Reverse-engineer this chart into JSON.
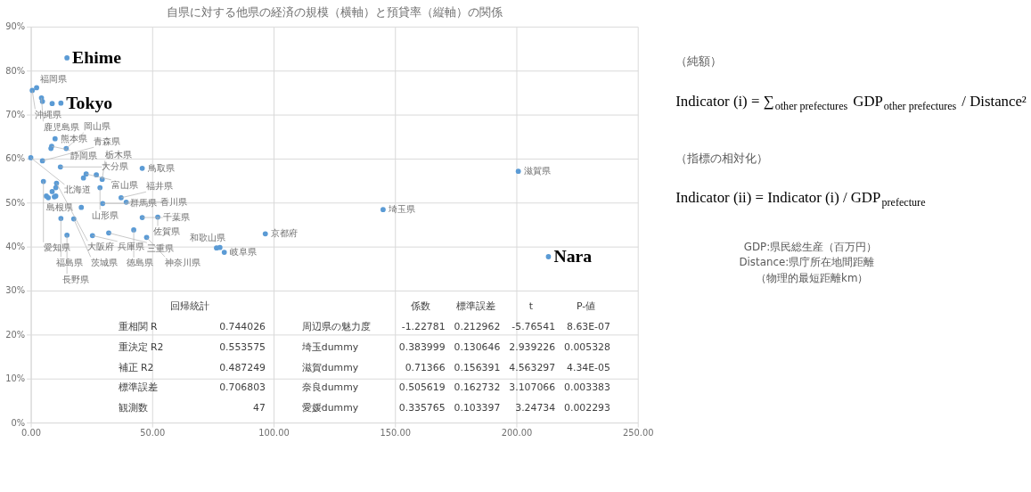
{
  "chart_data": [
    {
      "type": "scatter",
      "title": "自県に対する他県の経済の規模（横軸）と預貸率（縦軸）の関係",
      "x": [
        14.9,
        0.6,
        2.4,
        4.4,
        4.8,
        8.8,
        12.4,
        10.0,
        8.6,
        8.3,
        14.6,
        0,
        4.8,
        12.2,
        22.8,
        21.7,
        27.0,
        29.4,
        28.5,
        5.2,
        10.6,
        10.3,
        8.8,
        6.4,
        7.2,
        9.7,
        10.3,
        20.8,
        29.6,
        37.2,
        39.3,
        45.9,
        12.4,
        17.7,
        45.9,
        52.3,
        14.9,
        25.4,
        32.1,
        42.4,
        47.7,
        200.8,
        145.1,
        96.6,
        76.5,
        77.9,
        79.7,
        213.2
      ],
      "values": [
        82.9,
        75.5,
        76.1,
        73.8,
        73.0,
        72.5,
        72.6,
        64.5,
        62.8,
        62.3,
        62.3,
        60.2,
        59.5,
        58.1,
        56.5,
        55.6,
        56.3,
        55.3,
        53.4,
        54.8,
        54.4,
        53.4,
        52.5,
        51.5,
        51.1,
        51.3,
        51.5,
        48.9,
        49.8,
        51.1,
        50.1,
        57.8,
        46.4,
        46.3,
        46.6,
        46.7,
        42.6,
        42.5,
        43.1,
        43.8,
        42.1,
        57.1,
        48.4,
        42.9,
        39.7,
        39.8,
        38.7,
        37.7
      ],
      "color": "#5b9bd5",
      "marker": "circle",
      "grid": true,
      "xlim": [
        0,
        250
      ],
      "xticks": [
        {
          "value": 0,
          "label": "0.00"
        },
        {
          "value": 50,
          "label": "50.00"
        },
        {
          "value": 100,
          "label": "100.00"
        },
        {
          "value": 150,
          "label": "150.00"
        },
        {
          "value": 200,
          "label": "200.00"
        },
        {
          "value": 250,
          "label": "250.00"
        }
      ],
      "ylim": [
        0,
        90
      ],
      "yticks": [
        {
          "value": 0,
          "label": "0%"
        },
        {
          "value": 10,
          "label": "10%"
        },
        {
          "value": 20,
          "label": "20%"
        },
        {
          "value": 30,
          "label": "30%"
        },
        {
          "value": 40,
          "label": "40%"
        },
        {
          "value": 50,
          "label": "50%"
        },
        {
          "value": 60,
          "label": "60%"
        },
        {
          "value": 70,
          "label": "70%"
        },
        {
          "value": 80,
          "label": "80%"
        },
        {
          "value": 90,
          "label": "90%"
        }
      ],
      "annotations": [
        {
          "text": "Ehime",
          "x": 14.9,
          "y": 82.9
        },
        {
          "text": "Tokyo",
          "x": 12.4,
          "y": 72.6
        },
        {
          "text": "Nara",
          "x": 213.2,
          "y": 37.7
        },
        {
          "text": "福岡県",
          "x": 2.4,
          "y": 76.1
        },
        {
          "text": "沖縄県",
          "x": 0.6,
          "y": 75.5
        },
        {
          "text": "鹿児島県",
          "x": 4.4,
          "y": 73.8
        },
        {
          "text": "熊本県",
          "x": 10.0,
          "y": 64.5
        },
        {
          "text": "静岡県",
          "x": 8.6,
          "y": 62.8
        },
        {
          "text": "岡山県",
          "x": 14.6,
          "y": 62.3
        },
        {
          "text": "北海道",
          "x": 0,
          "y": 60.2
        },
        {
          "text": "青森県",
          "x": 4.8,
          "y": 59.5
        },
        {
          "text": "大分県",
          "x": 12.2,
          "y": 58.1
        },
        {
          "text": "富山県",
          "x": 22.8,
          "y": 56.5
        },
        {
          "text": "栃木県",
          "x": 29.4,
          "y": 55.3
        },
        {
          "text": "山形県",
          "x": 28.5,
          "y": 53.4
        },
        {
          "text": "愛知県",
          "x": 5.2,
          "y": 54.8
        },
        {
          "text": "大阪府",
          "x": 10.6,
          "y": 54.4
        },
        {
          "text": "島根県",
          "x": 20.8,
          "y": 48.9
        },
        {
          "text": "群馬県",
          "x": 29.6,
          "y": 49.8
        },
        {
          "text": "福井県",
          "x": 37.2,
          "y": 51.1
        },
        {
          "text": "香川県",
          "x": 39.3,
          "y": 50.1
        },
        {
          "text": "鳥取県",
          "x": 45.9,
          "y": 57.8
        },
        {
          "text": "福島県",
          "x": 12.4,
          "y": 46.4
        },
        {
          "text": "茨城県",
          "x": 17.7,
          "y": 46.3
        },
        {
          "text": "千葉県",
          "x": 45.9,
          "y": 46.6
        },
        {
          "text": "佐賀県",
          "x": 52.3,
          "y": 46.7
        },
        {
          "text": "長野県",
          "x": 14.9,
          "y": 42.6
        },
        {
          "text": "兵庫県",
          "x": 25.4,
          "y": 42.5
        },
        {
          "text": "三重県",
          "x": 32.1,
          "y": 43.1
        },
        {
          "text": "徳島県",
          "x": 42.4,
          "y": 43.8
        },
        {
          "text": "神奈川県",
          "x": 47.7,
          "y": 42.1
        },
        {
          "text": "滋賀県",
          "x": 200.8,
          "y": 57.1
        },
        {
          "text": "埼玉県",
          "x": 145.1,
          "y": 48.4
        },
        {
          "text": "京都府",
          "x": 96.6,
          "y": 42.9
        },
        {
          "text": "和歌山県",
          "x": 76.5,
          "y": 39.7
        },
        {
          "text": "岐阜県",
          "x": 79.7,
          "y": 38.7
        },
        "回帰統計",
        "重相関 R\t0.744026",
        "重決定 R2\t0.553575",
        "補正 R2\t0.487249",
        "標準誤差\t0.706803",
        "観測数\t47",
        "\t係数\t標準誤差\tt\tP-値",
        "周辺県の魅力度\t-1.22781\t0.212962\t-5.76541\t8.63E-07",
        "埼玉dummy\t0.383999\t0.130646\t2.939226\t0.005328",
        "滋賀dummy\t0.71366\t0.156391\t4.563297\t4.34E-05",
        "奈良dummy\t0.505619\t0.162732\t3.107066\t0.003383",
        "愛媛dummy\t0.335765\t0.103397\t3.24734\t0.002293"
      ]
    },
    {
      "type": "other",
      "annotations": [
        "（純額）",
        "Indicator (i) = ∑$_{other prefectures}$ GDP$_{other prefectures}$ / Distance²",
        "（指標の相対化）",
        "Indicator (ii) = Indicator (i) / GDP$_{prefecture}$",
        "GDP:県民総生産（百万円）",
        "Distance:県庁所在地間距離",
        "（物理的最短距離km）"
      ]
    }
  ]
}
